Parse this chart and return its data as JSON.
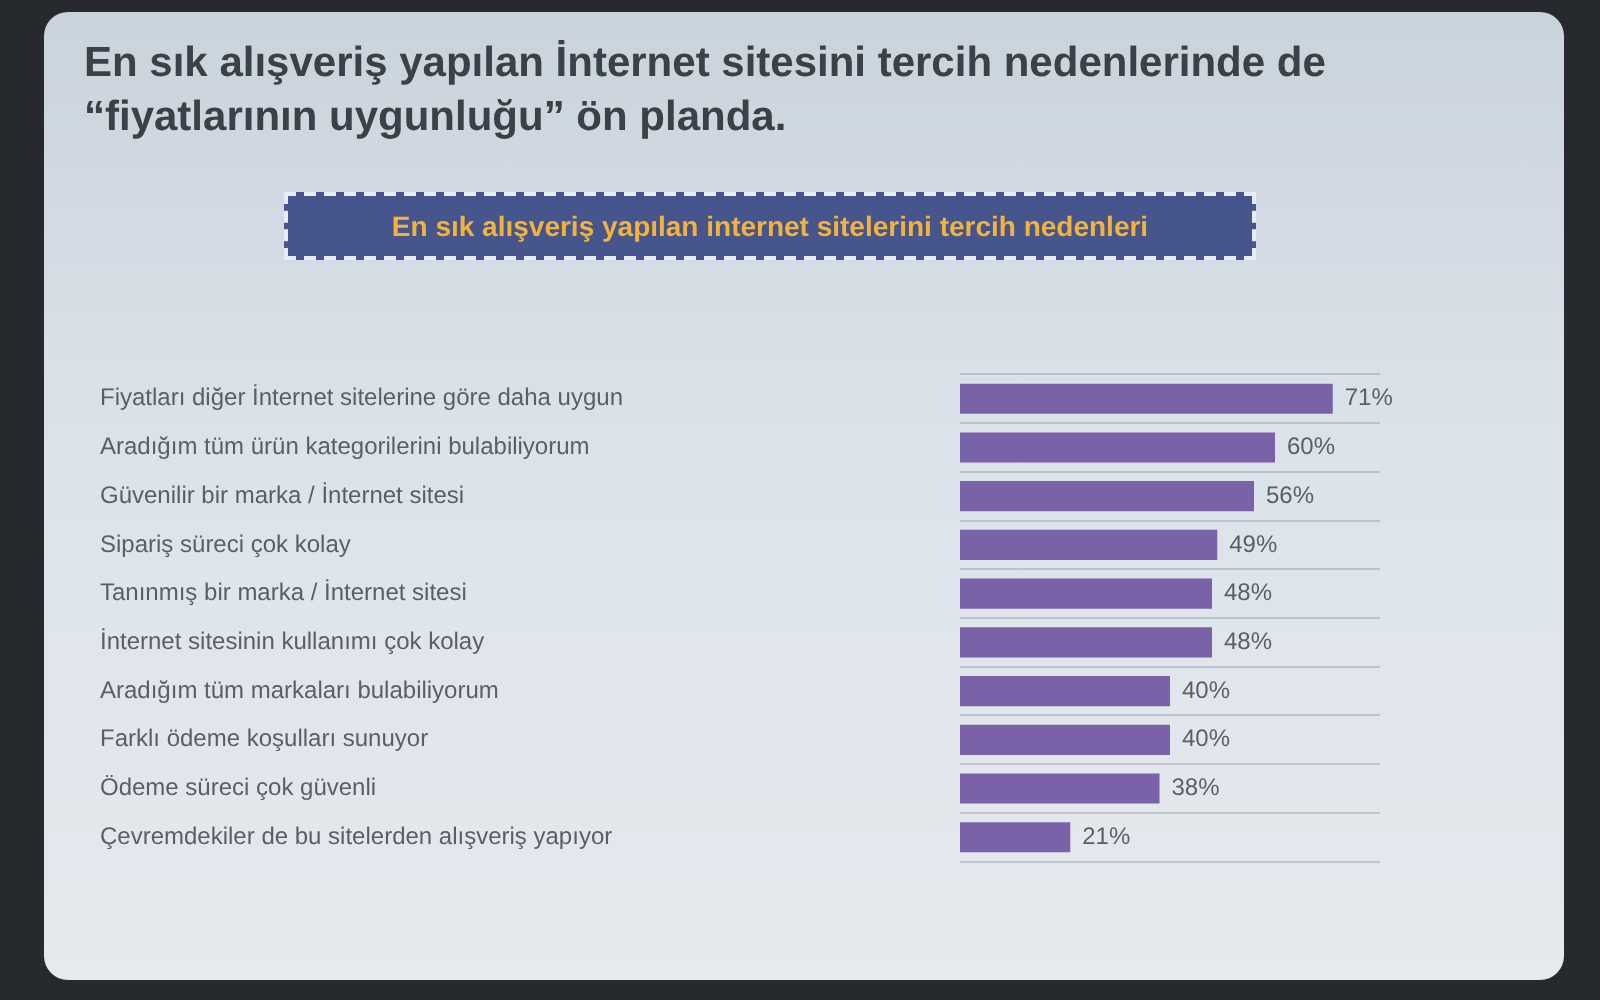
{
  "chart_data": {
    "type": "bar",
    "orientation": "horizontal",
    "title": "En sık alışveriş yapılan İnternet sitesini tercih nedenlerinde de “fiyatlarının uygunluğu” ön planda.",
    "subtitle": "En sık alışveriş yapılan internet sitelerini tercih nedenleri",
    "categories": [
      "Fiyatları diğer İnternet sitelerine göre daha uygun",
      "Aradığım tüm ürün kategorilerini bulabiliyorum",
      "Güvenilir bir marka / İnternet sitesi",
      "Sipariş süreci çok kolay",
      "Tanınmış bir marka / İnternet sitesi",
      "İnternet sitesinin kullanımı çok kolay",
      "Aradığım tüm markaları bulabiliyorum",
      "Farklı ödeme koşulları sunuyor",
      "Ödeme süreci çok güvenli",
      "Çevremdekiler de bu sitelerden alışveriş yapıyor"
    ],
    "values": [
      71,
      60,
      56,
      49,
      48,
      48,
      40,
      40,
      38,
      21
    ],
    "value_labels": [
      "71%",
      "60%",
      "56%",
      "49%",
      "48%",
      "48%",
      "40%",
      "40%",
      "38%",
      "21%"
    ],
    "color": "#7a62a8",
    "grid": "y",
    "legend": false,
    "tick_labels": "y"
  }
}
